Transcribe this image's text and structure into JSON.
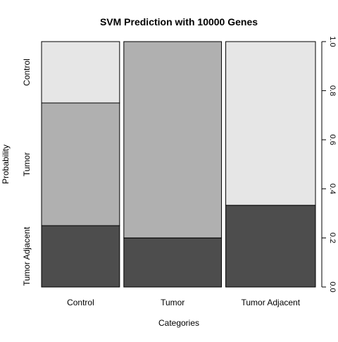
{
  "chart_data": {
    "type": "bar",
    "subtype": "spineplot",
    "title": "SVM Prediction with 10000 Genes",
    "xlabel": "Categories",
    "ylabel": "Probability",
    "categories": [
      "Control",
      "Tumor",
      "Tumor Adjacent"
    ],
    "category_widths": [
      0.294,
      0.368,
      0.338
    ],
    "levels": [
      "Tumor Adjacent",
      "Tumor",
      "Control"
    ],
    "level_colors": [
      "#4d4d4d",
      "#b0b0b0",
      "#e6e6e6"
    ],
    "series": [
      {
        "name": "Tumor Adjacent",
        "values": [
          0.25,
          0.2,
          0.333
        ]
      },
      {
        "name": "Tumor",
        "values": [
          0.5,
          0.8,
          0.0
        ]
      },
      {
        "name": "Control",
        "values": [
          0.25,
          0.0,
          0.667
        ]
      }
    ],
    "right_axis_ticks": [
      "0.0",
      "0.2",
      "0.4",
      "0.6",
      "0.8",
      "1.0"
    ],
    "ylim": [
      0,
      1
    ],
    "grid": false,
    "legend": "none"
  }
}
